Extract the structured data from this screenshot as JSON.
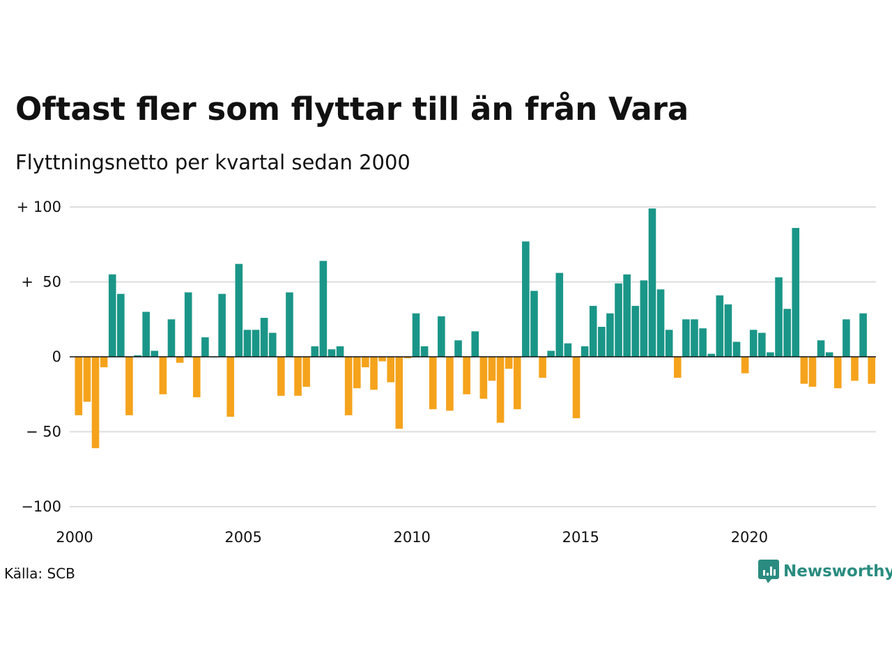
{
  "colors": {
    "positive": "#1a9688",
    "negative": "#f5a31c",
    "grid": "#dddddd",
    "zero_line": "#111111",
    "logo": "#2a8c80"
  },
  "source": "Källa: SCB",
  "logo": {
    "text": "Newsworthy",
    "icon": "bar-chart-speech-bubble-icon"
  },
  "chart_data": {
    "type": "bar",
    "title": "Oftast fler som flyttar till än från Vara",
    "subtitle": "Flyttningsnetto per kvartal sedan 2000",
    "xlabel": "",
    "ylabel": "",
    "ylim": [
      -100,
      100
    ],
    "yticks": [
      100,
      50,
      0,
      -50,
      -100
    ],
    "ytick_labels": [
      "+ 100",
      "+  50",
      "0",
      "− 50",
      "−100"
    ],
    "xticks": [
      "2000",
      "2005",
      "2010",
      "2015",
      "2020"
    ],
    "grid": true,
    "start_year": 2000,
    "values": [
      -39,
      -30,
      -61,
      -7,
      55,
      42,
      -39,
      1,
      30,
      4,
      -25,
      25,
      -4,
      43,
      -27,
      13,
      0,
      42,
      -40,
      62,
      18,
      18,
      26,
      16,
      -26,
      43,
      -26,
      -20,
      7,
      64,
      5,
      7,
      -39,
      -21,
      -7,
      -22,
      -3,
      -17,
      -48,
      -1,
      29,
      7,
      -35,
      27,
      -36,
      11,
      -25,
      17,
      -28,
      -16,
      -44,
      -8,
      -35,
      77,
      44,
      -14,
      4,
      56,
      9,
      -41,
      7,
      34,
      20,
      29,
      49,
      55,
      34,
      51,
      99,
      45,
      18,
      -14,
      25,
      25,
      19,
      2,
      41,
      35,
      10,
      -11,
      18,
      16,
      3,
      53,
      32,
      86,
      -18,
      -20,
      11,
      3,
      -21,
      25,
      -16,
      29,
      -18
    ]
  }
}
